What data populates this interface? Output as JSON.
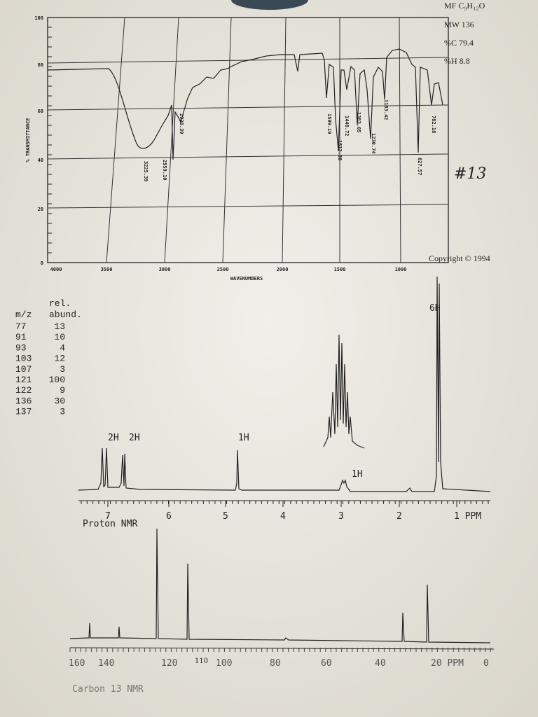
{
  "formula": {
    "mf": "MF C₉H₁₂O",
    "mw": "MW 136",
    "carbon": "%C 79.4",
    "hydrogen": "%H 8.8"
  },
  "ir": {
    "y_axis_label": "% TRANSMITTANCE",
    "x_axis_label": "WAVENUMBERS",
    "yticks": [
      "100",
      "80",
      "60",
      "40",
      "20",
      "0"
    ],
    "xticks": [
      "4000",
      "3500",
      "3000",
      "2500",
      "2000",
      "1500",
      "1000"
    ],
    "peaks": [
      "3225.39",
      "2959.10",
      "2928.39",
      "1599.19",
      "1512.38",
      "1448.72",
      "1383.05",
      "1230.74",
      "1183.42",
      "827.57",
      "782.18"
    ],
    "copyright": "Copyright © 1994"
  },
  "annotation": "#13",
  "mass": {
    "header_top": "rel.",
    "headers": [
      "m/z",
      "abund."
    ],
    "rows": [
      [
        77,
        13
      ],
      [
        91,
        10
      ],
      [
        93,
        4
      ],
      [
        103,
        12
      ],
      [
        107,
        3
      ],
      [
        121,
        100
      ],
      [
        122,
        9
      ],
      [
        136,
        30
      ],
      [
        137,
        3
      ]
    ]
  },
  "proton_nmr": {
    "title": "Proton NMR",
    "integrations": [
      "2H",
      "2H",
      "1H",
      "1H",
      "6H"
    ],
    "xticks": [
      "7",
      "6",
      "5",
      "4",
      "3",
      "2",
      "1 PPM"
    ]
  },
  "carbon_nmr": {
    "title": "Carbon 13 NMR",
    "xticks": [
      "160",
      "140",
      "120",
      "100",
      "80",
      "60",
      "40",
      "20 PPM",
      "0"
    ],
    "note": "110"
  }
}
